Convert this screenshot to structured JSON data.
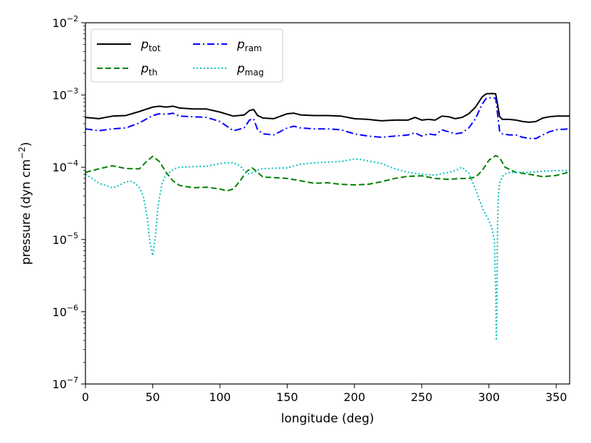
{
  "chart_data": {
    "type": "line",
    "title": "",
    "xlabel": "longitude (deg)",
    "ylabel": "pressure (dyn cm",
    "ylabel_unit_exp": "−2",
    "ylabel_close": ")",
    "xlim": [
      0,
      360
    ],
    "ylim": [
      1e-07,
      0.01
    ],
    "yscale": "log",
    "grid": false,
    "legend_position": "upper-left",
    "x_ticks": [
      0,
      50,
      100,
      150,
      200,
      250,
      300,
      350
    ],
    "x_tick_labels": [
      "0",
      "50",
      "100",
      "150",
      "200",
      "250",
      "300",
      "350"
    ],
    "y_ticks": [
      -7,
      -6,
      -5,
      -4,
      -3,
      -2
    ],
    "y_tick_base": "10",
    "y_tick_exponents": [
      "−7",
      "−6",
      "−5",
      "−4",
      "−3",
      "−2"
    ],
    "series": [
      {
        "name": "p_tot",
        "label_main": "p",
        "label_sub": "tot",
        "color": "#000000",
        "dash": "",
        "x": [
          0,
          10,
          20,
          30,
          40,
          50,
          55,
          60,
          65,
          70,
          80,
          90,
          100,
          110,
          118,
          122,
          125,
          128,
          132,
          140,
          150,
          155,
          160,
          170,
          180,
          190,
          200,
          210,
          220,
          230,
          240,
          245,
          250,
          255,
          260,
          265,
          270,
          275,
          280,
          285,
          290,
          295,
          298,
          302,
          305,
          308,
          310,
          315,
          320,
          325,
          330,
          335,
          340,
          345,
          350,
          360
        ],
        "y": [
          0.00049,
          0.00047,
          0.00051,
          0.00052,
          0.00059,
          0.00068,
          0.0007,
          0.00068,
          0.0007,
          0.00066,
          0.00064,
          0.00064,
          0.00058,
          0.00051,
          0.00053,
          0.00061,
          0.00063,
          0.00052,
          0.00048,
          0.00047,
          0.00055,
          0.00056,
          0.00053,
          0.00052,
          0.00052,
          0.00051,
          0.00047,
          0.00046,
          0.00044,
          0.00045,
          0.00045,
          0.00049,
          0.00045,
          0.00046,
          0.00045,
          0.00051,
          0.0005,
          0.00047,
          0.00049,
          0.00055,
          0.00068,
          0.00094,
          0.00104,
          0.00105,
          0.00104,
          0.0005,
          0.00046,
          0.00046,
          0.00045,
          0.00043,
          0.00042,
          0.00043,
          0.00048,
          0.0005,
          0.00051,
          0.00051
        ]
      },
      {
        "name": "p_th",
        "label_main": "p",
        "label_sub": "th",
        "color": "#008000",
        "dash": "8,4",
        "x": [
          0,
          10,
          20,
          30,
          40,
          45,
          50,
          55,
          60,
          65,
          70,
          80,
          90,
          100,
          105,
          110,
          115,
          120,
          124,
          128,
          132,
          140,
          150,
          160,
          170,
          180,
          190,
          200,
          210,
          220,
          230,
          240,
          250,
          260,
          270,
          280,
          285,
          290,
          295,
          300,
          305,
          308,
          312,
          320,
          330,
          340,
          350,
          360
        ],
        "y": [
          8.5e-05,
          9.5e-05,
          0.000105,
          9.6e-05,
          9.5e-05,
          0.000118,
          0.000142,
          0.00012,
          8.5e-05,
          6.5e-05,
          5.6e-05,
          5.2e-05,
          5.3e-05,
          5e-05,
          4.7e-05,
          5e-05,
          6.5e-05,
          8.8e-05,
          9.8e-05,
          8.5e-05,
          7.3e-05,
          7.2e-05,
          7e-05,
          6.5e-05,
          6e-05,
          6.1e-05,
          5.8e-05,
          5.7e-05,
          5.8e-05,
          6.3e-05,
          7e-05,
          7.5e-05,
          7.6e-05,
          7e-05,
          6.8e-05,
          7e-05,
          7e-05,
          7.3e-05,
          9e-05,
          0.000125,
          0.000145,
          0.000135,
          0.0001,
          8.5e-05,
          8e-05,
          7.4e-05,
          7.7e-05,
          8.6e-05
        ]
      },
      {
        "name": "p_ram",
        "label_main": "p",
        "label_sub": "ram",
        "color": "#0000ff",
        "dash": "10,4,2,4",
        "x": [
          0,
          10,
          20,
          30,
          40,
          50,
          55,
          60,
          65,
          70,
          80,
          90,
          100,
          110,
          118,
          122,
          125,
          128,
          132,
          140,
          150,
          155,
          160,
          170,
          180,
          190,
          200,
          210,
          220,
          230,
          240,
          245,
          250,
          255,
          260,
          265,
          270,
          275,
          280,
          285,
          290,
          295,
          298,
          302,
          305,
          308,
          310,
          315,
          320,
          325,
          330,
          335,
          340,
          345,
          350,
          360
        ],
        "y": [
          0.00034,
          0.00032,
          0.00034,
          0.00035,
          0.00041,
          0.00052,
          0.00055,
          0.00054,
          0.00056,
          0.00051,
          0.0005,
          0.00049,
          0.00043,
          0.00032,
          0.00035,
          0.00045,
          0.00047,
          0.00033,
          0.00029,
          0.00028,
          0.00035,
          0.00037,
          0.00035,
          0.00034,
          0.00034,
          0.00033,
          0.00029,
          0.00027,
          0.00026,
          0.00027,
          0.00028,
          0.0003,
          0.00027,
          0.00029,
          0.00028,
          0.00033,
          0.00031,
          0.00029,
          0.0003,
          0.00035,
          0.00047,
          0.00075,
          0.0009,
          0.00092,
          0.0009,
          0.00031,
          0.00029,
          0.00028,
          0.00028,
          0.00026,
          0.00025,
          0.00025,
          0.00028,
          0.00031,
          0.00033,
          0.00034
        ]
      },
      {
        "name": "p_mag",
        "label_main": "p",
        "label_sub": "mag",
        "color": "#00bfbf",
        "dash": "2,3",
        "x": [
          0,
          5,
          10,
          15,
          20,
          25,
          30,
          35,
          40,
          43,
          46,
          48,
          50,
          52,
          54,
          57,
          60,
          63,
          66,
          70,
          80,
          90,
          100,
          105,
          110,
          115,
          120,
          125,
          130,
          140,
          150,
          160,
          170,
          180,
          190,
          200,
          205,
          210,
          220,
          230,
          240,
          250,
          260,
          270,
          275,
          280,
          285,
          290,
          293,
          296,
          299,
          302,
          304,
          305,
          305.5,
          306,
          306.5,
          307,
          308,
          310,
          313,
          316,
          320,
          325,
          330,
          340,
          350,
          360
        ],
        "y": [
          8e-05,
          7e-05,
          6e-05,
          5.6e-05,
          5.2e-05,
          5.6e-05,
          6.3e-05,
          6.4e-05,
          5.3e-05,
          4e-05,
          2e-05,
          9e-06,
          6e-06,
          1.1e-05,
          3e-05,
          6e-05,
          8e-05,
          8.6e-05,
          9.5e-05,
          0.0001,
          0.000102,
          0.000103,
          0.000113,
          0.000115,
          0.000115,
          0.000105,
          8e-05,
          8.5e-05,
          9.5e-05,
          9.7e-05,
          9.8e-05,
          0.00011,
          0.000115,
          0.000118,
          0.00012,
          0.00013,
          0.000128,
          0.000122,
          0.000113,
          9.5e-05,
          8.5e-05,
          8e-05,
          7.8e-05,
          8.5e-05,
          9e-05,
          0.0001,
          8.3e-05,
          5e-05,
          3.5e-05,
          2.5e-05,
          2e-05,
          1.5e-05,
          1e-05,
          2e-06,
          4e-07,
          2e-06,
          2e-05,
          4e-05,
          6e-05,
          7.5e-05,
          8.2e-05,
          8.5e-05,
          8.5e-05,
          8.5e-05,
          8.5e-05,
          8.8e-05,
          9e-05,
          9e-05
        ]
      }
    ]
  }
}
